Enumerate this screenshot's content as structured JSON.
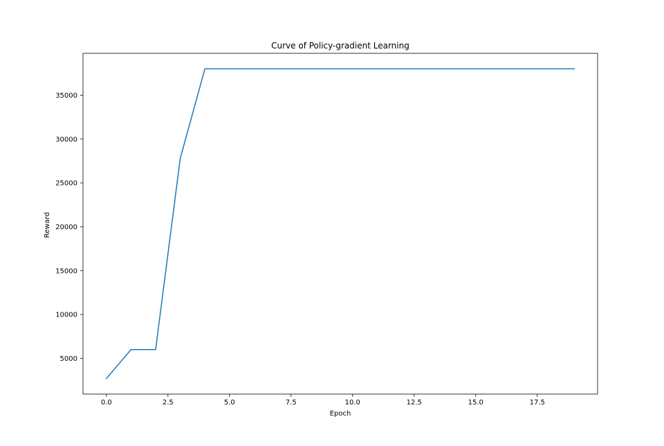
{
  "chart_data": {
    "type": "line",
    "title": "Curve of Policy-gradient Learning",
    "xlabel": "Epoch",
    "ylabel": "Reward",
    "x": [
      0,
      1,
      2,
      3,
      4,
      5,
      6,
      7,
      8,
      9,
      10,
      11,
      12,
      13,
      14,
      15,
      16,
      17,
      18,
      19
    ],
    "series": [
      {
        "values": [
          2700,
          6000,
          6000,
          27800,
          38000,
          38000,
          38000,
          38000,
          38000,
          38000,
          38000,
          38000,
          38000,
          38000,
          38000,
          38000,
          38000,
          38000,
          38000,
          38000
        ],
        "color": "#1f77b4"
      }
    ],
    "xlim": [
      -0.95,
      19.95
    ],
    "ylim": [
      931,
      39769
    ],
    "xticks": [
      0.0,
      2.5,
      5.0,
      7.5,
      10.0,
      12.5,
      15.0,
      17.5
    ],
    "xtick_labels": [
      "0.0",
      "2.5",
      "5.0",
      "7.5",
      "10.0",
      "12.5",
      "15.0",
      "17.5"
    ],
    "yticks": [
      5000,
      10000,
      15000,
      20000,
      25000,
      30000,
      35000
    ],
    "ytick_labels": [
      "5000",
      "10000",
      "15000",
      "20000",
      "25000",
      "30000",
      "35000"
    ],
    "grid": false,
    "legend": "none"
  }
}
